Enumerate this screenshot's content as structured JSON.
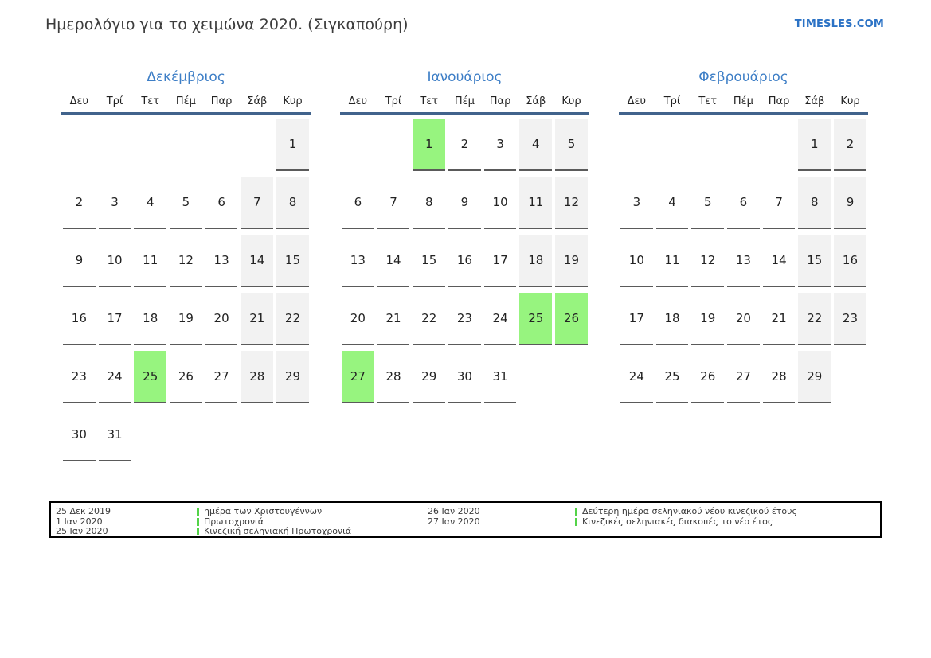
{
  "header": {
    "title": "Ημερολόγιο για το χειμώνα 2020. (Σιγκαπούρη)",
    "site": "TIMESLES.COM"
  },
  "colors": {
    "accent_blue": "#3d7ec6",
    "header_rule_blue": "#41638c",
    "weekend_bg": "#f2f2f2",
    "holiday_bg": "#97f47f",
    "legend_marker_green": "#53d348",
    "site_link_blue": "#2b72c5"
  },
  "weekdays": [
    "Δευ",
    "Τρί",
    "Τετ",
    "Πέμ",
    "Παρ",
    "Σάβ",
    "Κυρ"
  ],
  "months": [
    {
      "name": "Δεκέμβριος",
      "weeks": [
        [
          null,
          null,
          null,
          null,
          null,
          null,
          {
            "day": 1,
            "type": "weekend"
          }
        ],
        [
          {
            "day": 2
          },
          {
            "day": 3
          },
          {
            "day": 4
          },
          {
            "day": 5
          },
          {
            "day": 6
          },
          {
            "day": 7,
            "type": "weekend"
          },
          {
            "day": 8,
            "type": "weekend"
          }
        ],
        [
          {
            "day": 9
          },
          {
            "day": 10
          },
          {
            "day": 11
          },
          {
            "day": 12
          },
          {
            "day": 13
          },
          {
            "day": 14,
            "type": "weekend"
          },
          {
            "day": 15,
            "type": "weekend"
          }
        ],
        [
          {
            "day": 16
          },
          {
            "day": 17
          },
          {
            "day": 18
          },
          {
            "day": 19
          },
          {
            "day": 20
          },
          {
            "day": 21,
            "type": "weekend"
          },
          {
            "day": 22,
            "type": "weekend"
          }
        ],
        [
          {
            "day": 23
          },
          {
            "day": 24
          },
          {
            "day": 25,
            "type": "holiday"
          },
          {
            "day": 26
          },
          {
            "day": 27
          },
          {
            "day": 28,
            "type": "weekend"
          },
          {
            "day": 29,
            "type": "weekend"
          }
        ],
        [
          {
            "day": 30
          },
          {
            "day": 31
          },
          null,
          null,
          null,
          null,
          null
        ]
      ]
    },
    {
      "name": "Ιανουάριος",
      "weeks": [
        [
          null,
          null,
          {
            "day": 1,
            "type": "holiday"
          },
          {
            "day": 2
          },
          {
            "day": 3
          },
          {
            "day": 4,
            "type": "weekend"
          },
          {
            "day": 5,
            "type": "weekend"
          }
        ],
        [
          {
            "day": 6
          },
          {
            "day": 7
          },
          {
            "day": 8
          },
          {
            "day": 9
          },
          {
            "day": 10
          },
          {
            "day": 11,
            "type": "weekend"
          },
          {
            "day": 12,
            "type": "weekend"
          }
        ],
        [
          {
            "day": 13
          },
          {
            "day": 14
          },
          {
            "day": 15
          },
          {
            "day": 16
          },
          {
            "day": 17
          },
          {
            "day": 18,
            "type": "weekend"
          },
          {
            "day": 19,
            "type": "weekend"
          }
        ],
        [
          {
            "day": 20
          },
          {
            "day": 21
          },
          {
            "day": 22
          },
          {
            "day": 23
          },
          {
            "day": 24
          },
          {
            "day": 25,
            "type": "holiday"
          },
          {
            "day": 26,
            "type": "holiday"
          }
        ],
        [
          {
            "day": 27,
            "type": "holiday"
          },
          {
            "day": 28
          },
          {
            "day": 29
          },
          {
            "day": 30
          },
          {
            "day": 31
          },
          null,
          null
        ]
      ]
    },
    {
      "name": "Φεβρουάριος",
      "weeks": [
        [
          null,
          null,
          null,
          null,
          null,
          {
            "day": 1,
            "type": "weekend"
          },
          {
            "day": 2,
            "type": "weekend"
          }
        ],
        [
          {
            "day": 3
          },
          {
            "day": 4
          },
          {
            "day": 5
          },
          {
            "day": 6
          },
          {
            "day": 7
          },
          {
            "day": 8,
            "type": "weekend"
          },
          {
            "day": 9,
            "type": "weekend"
          }
        ],
        [
          {
            "day": 10
          },
          {
            "day": 11
          },
          {
            "day": 12
          },
          {
            "day": 13
          },
          {
            "day": 14
          },
          {
            "day": 15,
            "type": "weekend"
          },
          {
            "day": 16,
            "type": "weekend"
          }
        ],
        [
          {
            "day": 17
          },
          {
            "day": 18
          },
          {
            "day": 19
          },
          {
            "day": 20
          },
          {
            "day": 21
          },
          {
            "day": 22,
            "type": "weekend"
          },
          {
            "day": 23,
            "type": "weekend"
          }
        ],
        [
          {
            "day": 24
          },
          {
            "day": 25
          },
          {
            "day": 26
          },
          {
            "day": 27
          },
          {
            "day": 28
          },
          {
            "day": 29,
            "type": "weekend"
          },
          null
        ]
      ]
    }
  ],
  "legend": {
    "groups": [
      {
        "dates": [
          "25 Δεκ 2019",
          "1 Ιαν 2020",
          "25 Ιαν 2020"
        ],
        "labels": [
          "ημέρα των Χριστουγέννων",
          "Πρωτοχρονιά",
          "Κινεζική σεληνιακή Πρωτοχρονιά"
        ]
      },
      {
        "dates": [
          "26 Ιαν 2020",
          "27 Ιαν 2020"
        ],
        "labels": [
          "Δεύτερη ημέρα σεληνιακού νέου κινεζικού έτους",
          "Κινεζικές σεληνιακές διακοπές το νέο έτος"
        ]
      }
    ]
  }
}
